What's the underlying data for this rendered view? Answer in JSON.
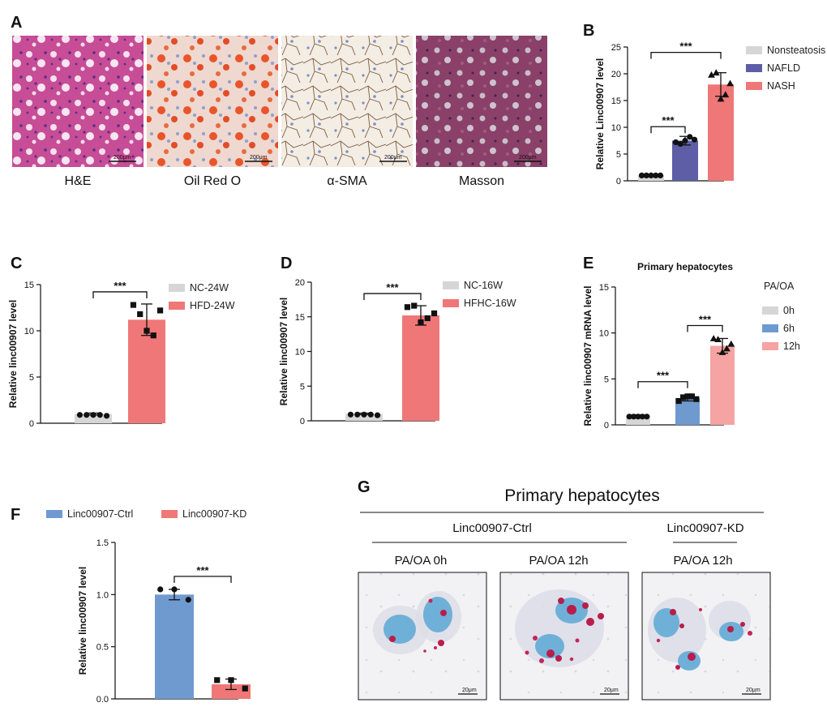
{
  "colors": {
    "gray": "#d6d6d6",
    "navy": "#5d5ea5",
    "salmon": "#f07777",
    "blue": "#6f9ad0",
    "pink": "#f5a3a3",
    "ink": "#111111"
  },
  "panel_a": {
    "label": "A",
    "images": [
      {
        "caption": "H&E",
        "scale": "200μm"
      },
      {
        "caption": "Oil Red O",
        "scale": "200μm"
      },
      {
        "caption": "α-SMA",
        "scale": "200μm"
      },
      {
        "caption": "Masson",
        "scale": "200μm"
      }
    ]
  },
  "panel_g": {
    "label": "G",
    "title": "Primary hepatocytes",
    "group_ctrl": "Linc00907-Ctrl",
    "group_kd": "Linc00907-KD",
    "images": [
      {
        "caption": "PA/OA 0h",
        "scale": "20μm"
      },
      {
        "caption": "PA/OA 12h",
        "scale": "20μm"
      },
      {
        "caption": "PA/OA 12h",
        "scale": "20μm"
      }
    ]
  },
  "chart_data": [
    {
      "panel": "B",
      "type": "bar",
      "title": "",
      "ylabel": "Relative Linc00907 level",
      "ylim": [
        0,
        25
      ],
      "yticks": [
        "0",
        "5",
        "10",
        "15",
        "20",
        "25"
      ],
      "categories": [
        "Nonsteatosis",
        "NAFLD",
        "NASH"
      ],
      "values": [
        1,
        7.5,
        18
      ],
      "errors": [
        0.1,
        0.8,
        2.2
      ],
      "points": [
        [
          1,
          1,
          1,
          1,
          1
        ],
        [
          7.2,
          6.9,
          7.5,
          8.2,
          7.7
        ],
        [
          19.8,
          20.2,
          15.3,
          16.1,
          18.2
        ]
      ],
      "legend": [
        "Nonsteatosis",
        "NAFLD",
        "NASH"
      ],
      "significance": [
        {
          "from": 0,
          "to": 1,
          "label": "***"
        },
        {
          "from": 0,
          "to": 2,
          "label": "***"
        }
      ]
    },
    {
      "panel": "C",
      "type": "bar",
      "title": "",
      "ylabel": "Relative linc00907 level",
      "ylim": [
        0,
        15
      ],
      "yticks": [
        "0",
        "5",
        "10",
        "15"
      ],
      "categories": [
        "NC-24W",
        "HFD-24W"
      ],
      "values": [
        1,
        11.2
      ],
      "errors": [
        0.1,
        1.7
      ],
      "points": [
        [
          0.9,
          0.9,
          0.9,
          0.9,
          0.8
        ],
        [
          12.8,
          11.8,
          10.0,
          9.5,
          12.2
        ]
      ],
      "legend": [
        "NC-24W",
        "HFD-24W"
      ],
      "significance": [
        {
          "from": 0,
          "to": 1,
          "label": "***"
        }
      ]
    },
    {
      "panel": "D",
      "type": "bar",
      "title": "",
      "ylabel": "Relative linc00907 level",
      "ylim": [
        0,
        20
      ],
      "yticks": [
        "0",
        "5",
        "10",
        "15",
        "20"
      ],
      "categories": [
        "NC-16W",
        "HFHC-16W"
      ],
      "values": [
        1,
        15.2
      ],
      "errors": [
        0.1,
        1.4
      ],
      "points": [
        [
          0.9,
          0.9,
          0.9,
          0.9,
          0.8
        ],
        [
          16.4,
          16.6,
          14.2,
          14.8,
          15.5
        ]
      ],
      "legend": [
        "NC-16W",
        "HFHC-16W"
      ],
      "significance": [
        {
          "from": 0,
          "to": 1,
          "label": "***"
        }
      ]
    },
    {
      "panel": "E",
      "type": "bar",
      "title": "Primary hepatocytes",
      "ylabel": "Relative linc00907 mRNA level",
      "ylim": [
        0,
        15
      ],
      "yticks": [
        "0",
        "5",
        "10",
        "15"
      ],
      "categories": [
        "0h",
        "6h",
        "12h"
      ],
      "values": [
        1,
        2.9,
        8.6
      ],
      "errors": [
        0.1,
        0.3,
        0.8
      ],
      "points": [
        [
          0.9,
          0.9,
          0.9,
          0.9,
          0.9
        ],
        [
          2.6,
          3.0,
          3.1,
          3.1,
          2.8
        ],
        [
          9.4,
          9.3,
          7.9,
          8.3,
          8.8
        ]
      ],
      "legend_title": "PA/OA",
      "legend": [
        "0h",
        "6h",
        "12h"
      ],
      "significance": [
        {
          "from": 0,
          "to": 1,
          "label": "***"
        },
        {
          "from": 1,
          "to": 2,
          "label": "***"
        }
      ]
    },
    {
      "panel": "F",
      "type": "bar",
      "title": "",
      "ylabel": "Relative linc00907 level",
      "ylim": [
        0,
        1.5
      ],
      "yticks": [
        "0.0",
        "0.5",
        "1.0",
        "1.5"
      ],
      "categories": [
        "Linc00907-Ctrl",
        "Linc00907-KD"
      ],
      "values": [
        1.0,
        0.14
      ],
      "errors": [
        0.05,
        0.05
      ],
      "points": [
        [
          1.05,
          1.05,
          0.95
        ],
        [
          0.18,
          0.18,
          0.1
        ]
      ],
      "legend": [
        "Linc00907-Ctrl",
        "Linc00907-KD"
      ],
      "significance": [
        {
          "from": 0,
          "to": 1,
          "label": "***"
        }
      ]
    }
  ]
}
